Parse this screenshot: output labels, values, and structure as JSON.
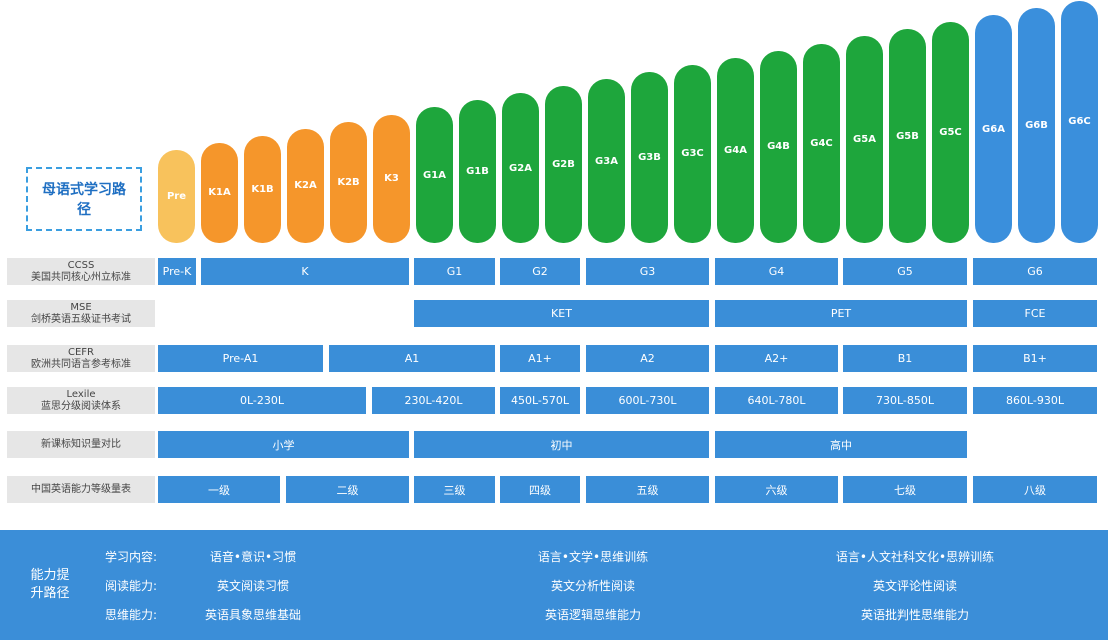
{
  "header": {
    "title": "母语式学习路径"
  },
  "levels": [
    "Pre",
    "K1A",
    "K1B",
    "K2A",
    "K2B",
    "K3",
    "G1A",
    "G1B",
    "G2A",
    "G2B",
    "G3A",
    "G3B",
    "G3C",
    "G4A",
    "G4B",
    "G4C",
    "G5A",
    "G5B",
    "G5C",
    "G6A",
    "G6B",
    "G6C"
  ],
  "rows": [
    {
      "code": "CCSS",
      "label": "美国共同核心州立标准",
      "cells": [
        "Pre-K",
        "K",
        "G1",
        "G2",
        "G3",
        "G4",
        "G5",
        "G6"
      ]
    },
    {
      "code": "MSE",
      "label": "剑桥英语五级证书考试",
      "cells": [
        "KET",
        "PET",
        "FCE"
      ]
    },
    {
      "code": "CEFR",
      "label": "欧洲共同语言参考标准",
      "cells": [
        "Pre-A1",
        "A1",
        "A1+",
        "A2",
        "A2+",
        "B1",
        "B1+"
      ]
    },
    {
      "code": "Lexile",
      "label": "蓝思分级阅读体系",
      "cells": [
        "0L-230L",
        "230L-420L",
        "450L-570L",
        "600L-730L",
        "640L-780L",
        "730L-850L",
        "860L-930L"
      ]
    },
    {
      "code": null,
      "label": "新课标知识量对比",
      "cells": [
        "小学",
        "初中",
        "高中"
      ]
    },
    {
      "code": null,
      "label": "中国英语能力等级量表",
      "cells": [
        "一级",
        "二级",
        "三级",
        "四级",
        "五级",
        "六级",
        "七级",
        "八级"
      ]
    }
  ],
  "footer": {
    "title": "能力提升路径",
    "rows": [
      {
        "label": "学习内容:",
        "items": [
          "语音•意识•习惯",
          "语言•文学•思维训练",
          "语言•人文社科文化•思辨训练"
        ]
      },
      {
        "label": "阅读能力:",
        "items": [
          "英文阅读习惯",
          "英文分析性阅读",
          "英文评论性阅读"
        ]
      },
      {
        "label": "思维能力:",
        "items": [
          "英语具象思维基础",
          "英语逻辑思维能力",
          "英语批判性思维能力"
        ]
      }
    ]
  }
}
